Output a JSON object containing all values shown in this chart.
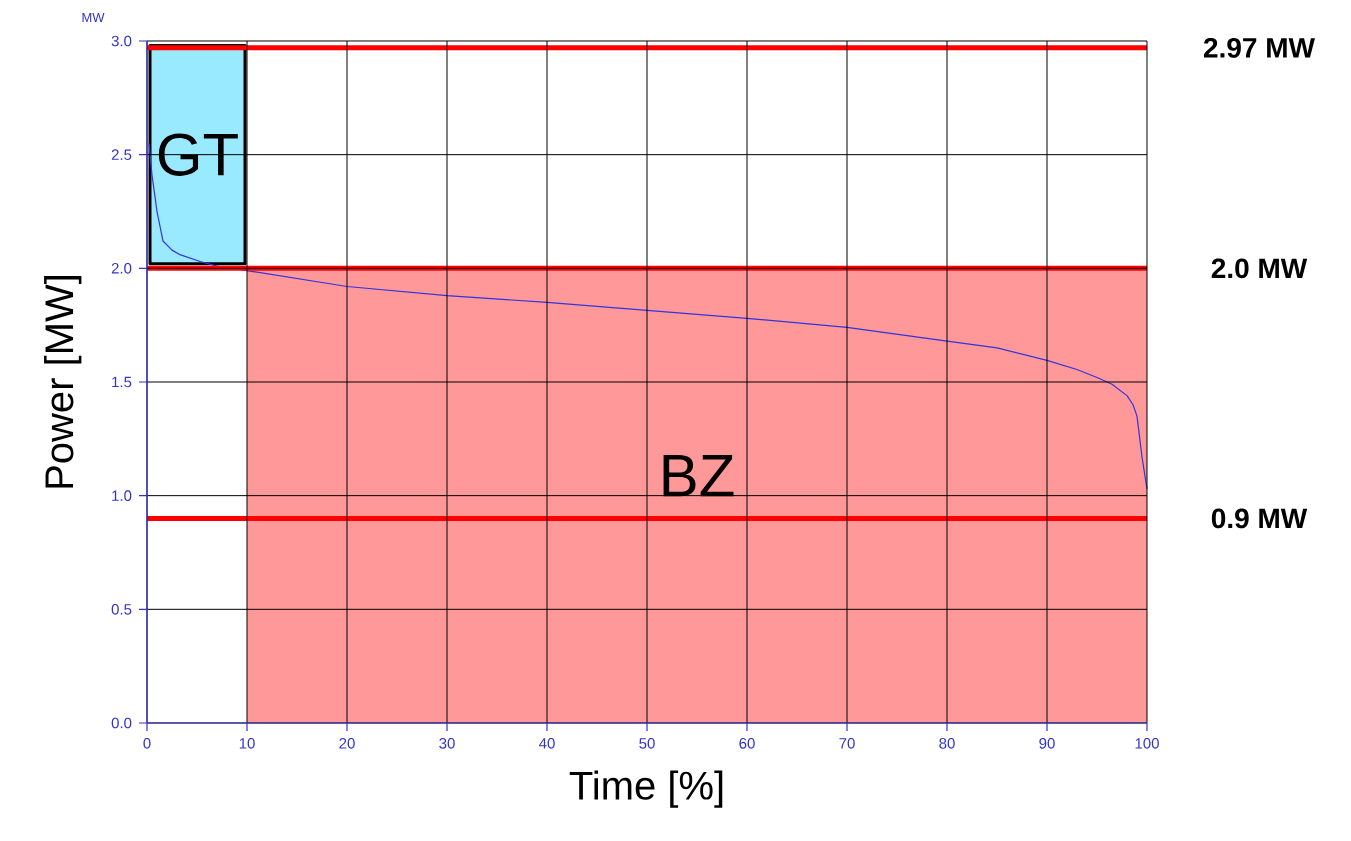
{
  "chart_data": {
    "type": "line",
    "xlabel": "Time [%]",
    "ylabel": "Power [MW]",
    "annotations": [
      "MW"
    ],
    "xlim": [
      0,
      100
    ],
    "ylim": [
      0,
      3
    ],
    "xticks": [
      0,
      10,
      20,
      30,
      40,
      50,
      60,
      70,
      80,
      90,
      100
    ],
    "yticks": [
      {
        "value": 0,
        "label": "0.0"
      },
      0.5,
      {
        "value": 1,
        "label": "1.0"
      },
      1.5,
      {
        "value": 2,
        "label": "2.0"
      },
      2.5,
      {
        "value": 3,
        "label": "3.0"
      }
    ],
    "grid": true,
    "marker": "none",
    "line_style": "solid",
    "series": [
      {
        "name": "BZ",
        "type": "area",
        "color": "#ff9999",
        "x": [
          10,
          100
        ],
        "values": [
          2.0,
          2.0
        ]
      },
      {
        "name": "GT",
        "type": "bar",
        "color": "#99e9ff",
        "x": [
          5.05
        ],
        "values": [
          0.96
        ],
        "base": [
          2.02
        ]
      },
      {
        "color": "#3333dd",
        "x": [
          0.2,
          0.5,
          1,
          1.6,
          2.5,
          3.3,
          5.3,
          7,
          10,
          20,
          30,
          40,
          50,
          60,
          70,
          80,
          85,
          90,
          93,
          95,
          96.5,
          98,
          98.6,
          99,
          99.5,
          100
        ],
        "values": [
          2.55,
          2.41,
          2.25,
          2.12,
          2.08,
          2.06,
          2.03,
          2.01,
          1.99,
          1.92,
          1.88,
          1.85,
          1.815,
          1.78,
          1.74,
          1.68,
          1.65,
          1.595,
          1.555,
          1.52,
          1.49,
          1.44,
          1.4,
          1.35,
          1.17,
          1.03
        ]
      }
    ],
    "ref_lines": [
      {
        "axis": "y",
        "value": 2.97,
        "label": "2.97 MW",
        "color": "#ff0000"
      },
      {
        "axis": "y",
        "value": 2.0,
        "label": "2.0 MW",
        "color": "#ff0000"
      },
      {
        "axis": "y",
        "value": 0.9,
        "label": "0.9 MW",
        "color": "#ff0000"
      }
    ]
  }
}
